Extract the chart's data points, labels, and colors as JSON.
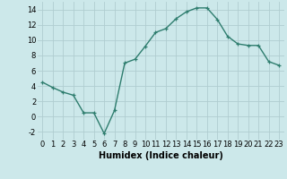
{
  "x": [
    0,
    1,
    2,
    3,
    4,
    5,
    6,
    7,
    8,
    9,
    10,
    11,
    12,
    13,
    14,
    15,
    16,
    17,
    18,
    19,
    20,
    21,
    22,
    23
  ],
  "y": [
    4.5,
    3.8,
    3.2,
    2.8,
    0.5,
    0.5,
    -2.2,
    0.8,
    7.0,
    7.5,
    9.2,
    11.0,
    11.5,
    12.8,
    13.7,
    14.2,
    14.2,
    12.7,
    10.5,
    9.5,
    9.3,
    9.3,
    7.2,
    6.7
  ],
  "line_color": "#2e7d6e",
  "marker": "+",
  "bg_color": "#cce8ea",
  "grid_color": "#b0cdd0",
  "xlabel": "Humidex (Indice chaleur)",
  "xlim": [
    -0.5,
    23.5
  ],
  "ylim": [
    -3,
    15
  ],
  "yticks": [
    -2,
    0,
    2,
    4,
    6,
    8,
    10,
    12,
    14
  ],
  "xticks": [
    0,
    1,
    2,
    3,
    4,
    5,
    6,
    7,
    8,
    9,
    10,
    11,
    12,
    13,
    14,
    15,
    16,
    17,
    18,
    19,
    20,
    21,
    22,
    23
  ],
  "xlabel_fontsize": 7.0,
  "tick_fontsize": 6.0,
  "linewidth": 1.0,
  "marker_size": 3.5
}
